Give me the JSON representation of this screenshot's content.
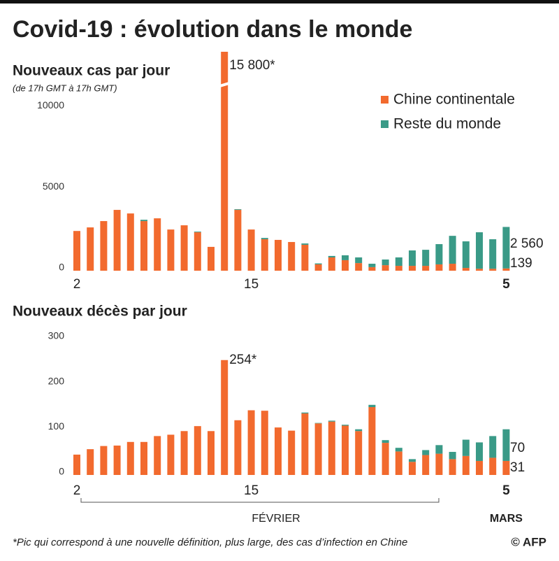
{
  "title": "Covid-19 : évolution dans le monde",
  "chart_data": [
    {
      "type": "bar",
      "stacked": true,
      "title": "Nouveaux cas par jour",
      "subtitle": "(de 17h GMT à 17h GMT)",
      "categories": [
        "2",
        null,
        null,
        null,
        null,
        null,
        null,
        null,
        null,
        null,
        null,
        null,
        null,
        "15",
        null,
        null,
        null,
        null,
        null,
        null,
        null,
        null,
        null,
        null,
        null,
        null,
        null,
        null,
        null,
        null,
        null,
        null,
        "5"
      ],
      "series": [
        {
          "name": "Chine continentale",
          "color": "#f26a2e",
          "values": [
            2450,
            2670,
            3060,
            3750,
            3530,
            3060,
            3230,
            2540,
            2800,
            2370,
            1470,
            15800,
            3750,
            2540,
            1940,
            1900,
            1770,
            1600,
            390,
            820,
            650,
            470,
            220,
            340,
            300,
            300,
            300,
            390,
            430,
            170,
            120,
            120,
            139
          ],
          "value_labels": [
            null,
            null,
            null,
            null,
            null,
            null,
            null,
            null,
            null,
            null,
            null,
            "15 800*",
            null,
            null,
            null,
            null,
            null,
            null,
            null,
            null,
            null,
            null,
            null,
            null,
            null,
            null,
            null,
            null,
            null,
            null,
            null,
            null,
            "139"
          ]
        },
        {
          "name": "Reste du monde",
          "color": "#3a9a87",
          "values": [
            0,
            0,
            0,
            0,
            0,
            80,
            0,
            0,
            0,
            40,
            0,
            0,
            40,
            0,
            80,
            0,
            0,
            80,
            60,
            90,
            300,
            350,
            210,
            350,
            520,
            950,
            990,
            1250,
            1720,
            1640,
            2250,
            1820,
            2560
          ],
          "value_labels": [
            null,
            null,
            null,
            null,
            null,
            null,
            null,
            null,
            null,
            null,
            null,
            null,
            null,
            null,
            null,
            null,
            null,
            null,
            null,
            null,
            null,
            null,
            null,
            null,
            null,
            null,
            null,
            null,
            null,
            null,
            null,
            null,
            "2 560"
          ]
        }
      ],
      "ylim": [
        0,
        13500
      ],
      "yticks": [
        0,
        5000,
        10000
      ],
      "grid": false,
      "axis_break": true,
      "legend": "upper right"
    },
    {
      "type": "bar",
      "stacked": true,
      "title": "Nouveaux décès par jour",
      "categories": [
        "2",
        null,
        null,
        null,
        null,
        null,
        null,
        null,
        null,
        null,
        null,
        null,
        null,
        "15",
        null,
        null,
        null,
        null,
        null,
        null,
        null,
        null,
        null,
        null,
        null,
        null,
        null,
        null,
        null,
        null,
        null,
        null,
        "5"
      ],
      "series": [
        {
          "color": "#f26a2e",
          "values": [
            45,
            57,
            64,
            65,
            73,
            73,
            86,
            89,
            97,
            108,
            97,
            254,
            121,
            143,
            142,
            105,
            98,
            136,
            114,
            118,
            109,
            97,
            150,
            71,
            52,
            29,
            44,
            47,
            35,
            42,
            31,
            38,
            31
          ],
          "value_labels": [
            null,
            null,
            null,
            null,
            null,
            null,
            null,
            null,
            null,
            null,
            null,
            "254*",
            null,
            null,
            null,
            null,
            null,
            null,
            null,
            null,
            null,
            null,
            null,
            null,
            null,
            null,
            null,
            null,
            null,
            null,
            null,
            null,
            "31"
          ]
        },
        {
          "color": "#3a9a87",
          "values": [
            0,
            0,
            0,
            0,
            0,
            0,
            0,
            0,
            0,
            0,
            0,
            0,
            0,
            0,
            0,
            0,
            0,
            2,
            1,
            2,
            2,
            4,
            5,
            6,
            8,
            6,
            11,
            19,
            16,
            36,
            41,
            48,
            70
          ],
          "value_labels": [
            null,
            null,
            null,
            null,
            null,
            null,
            null,
            null,
            null,
            null,
            null,
            null,
            null,
            null,
            null,
            null,
            null,
            null,
            null,
            null,
            null,
            null,
            null,
            null,
            null,
            null,
            null,
            null,
            null,
            null,
            null,
            null,
            "70"
          ]
        }
      ],
      "ylim": [
        0,
        300
      ],
      "yticks": [
        0,
        100,
        200,
        300
      ],
      "grid": false,
      "months": [
        "FÉVRIER",
        "MARS"
      ]
    }
  ],
  "footnote": "*Pic qui correspond à une nouvelle définition, plus large, des cas d’infection en Chine",
  "credit": "© AFP"
}
